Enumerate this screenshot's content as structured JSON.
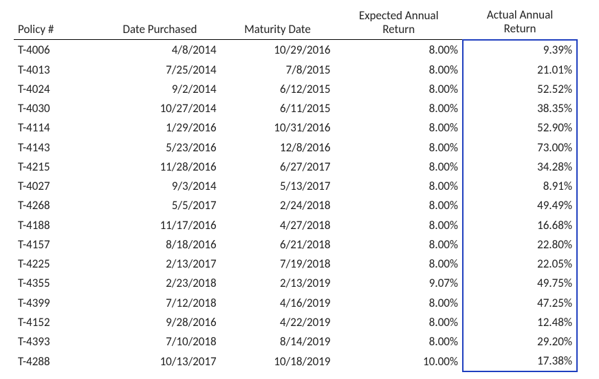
{
  "highlight_border_color": "#1f3fbf",
  "header_border_color": "#000000",
  "text_color": "#222222",
  "background_color": "#ffffff",
  "font_size_pt": 12,
  "columns": [
    {
      "key": "policy",
      "label": "Policy #",
      "align": "left"
    },
    {
      "key": "purchased",
      "label": "Date Purchased",
      "align": "right"
    },
    {
      "key": "maturity",
      "label": "Maturity Date",
      "align": "right"
    },
    {
      "key": "expected",
      "label": "Expected Annual\nReturn",
      "align": "right"
    },
    {
      "key": "actual",
      "label": "Actual Annual\nReturn",
      "align": "right",
      "highlighted": true
    }
  ],
  "rows": [
    {
      "policy": "T-4006",
      "purchased": "4/8/2014",
      "maturity": "10/29/2016",
      "expected": "8.00%",
      "actual": "9.39%"
    },
    {
      "policy": "T-4013",
      "purchased": "7/25/2014",
      "maturity": "7/8/2015",
      "expected": "8.00%",
      "actual": "21.01%"
    },
    {
      "policy": "T-4024",
      "purchased": "9/2/2014",
      "maturity": "6/12/2015",
      "expected": "8.00%",
      "actual": "52.52%"
    },
    {
      "policy": "T-4030",
      "purchased": "10/27/2014",
      "maturity": "6/11/2015",
      "expected": "8.00%",
      "actual": "38.35%"
    },
    {
      "policy": "T-4114",
      "purchased": "1/29/2016",
      "maturity": "10/31/2016",
      "expected": "8.00%",
      "actual": "52.90%"
    },
    {
      "policy": "T-4143",
      "purchased": "5/23/2016",
      "maturity": "12/8/2016",
      "expected": "8.00%",
      "actual": "73.00%"
    },
    {
      "policy": "T-4215",
      "purchased": "11/28/2016",
      "maturity": "6/27/2017",
      "expected": "8.00%",
      "actual": "34.28%"
    },
    {
      "policy": "T-4027",
      "purchased": "9/3/2014",
      "maturity": "5/13/2017",
      "expected": "8.00%",
      "actual": "8.91%"
    },
    {
      "policy": "T-4268",
      "purchased": "5/5/2017",
      "maturity": "2/24/2018",
      "expected": "8.00%",
      "actual": "49.49%"
    },
    {
      "policy": "T-4188",
      "purchased": "11/17/2016",
      "maturity": "4/27/2018",
      "expected": "8.00%",
      "actual": "16.68%"
    },
    {
      "policy": "T-4157",
      "purchased": "8/18/2016",
      "maturity": "6/21/2018",
      "expected": "8.00%",
      "actual": "22.80%"
    },
    {
      "policy": "T-4225",
      "purchased": "2/13/2017",
      "maturity": "7/19/2018",
      "expected": "8.00%",
      "actual": "22.05%"
    },
    {
      "policy": "T-4355",
      "purchased": "2/23/2018",
      "maturity": "2/13/2019",
      "expected": "9.07%",
      "actual": "49.75%"
    },
    {
      "policy": "T-4399",
      "purchased": "7/12/2018",
      "maturity": "4/16/2019",
      "expected": "8.00%",
      "actual": "47.25%"
    },
    {
      "policy": "T-4152",
      "purchased": "9/28/2016",
      "maturity": "4/22/2019",
      "expected": "8.00%",
      "actual": "12.48%"
    },
    {
      "policy": "T-4393",
      "purchased": "7/10/2018",
      "maturity": "8/14/2019",
      "expected": "8.00%",
      "actual": "29.20%"
    },
    {
      "policy": "T-4288",
      "purchased": "10/13/2017",
      "maturity": "10/18/2019",
      "expected": "10.00%",
      "actual": "17.38%"
    }
  ]
}
